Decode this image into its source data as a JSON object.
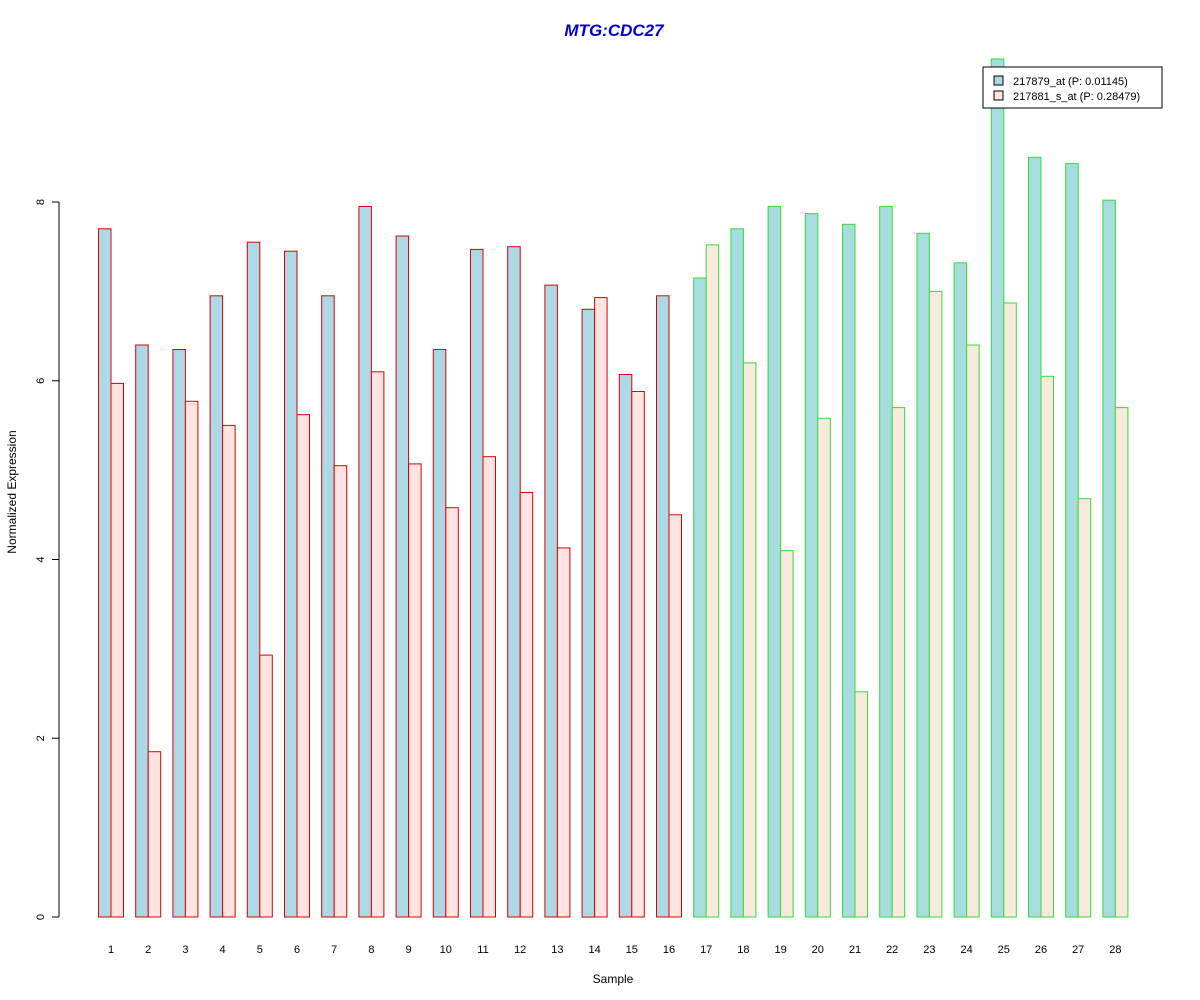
{
  "chart_data": {
    "type": "bar",
    "title": "MTG:CDC27",
    "xlabel": "Sample",
    "ylabel": "Normalized Expression",
    "ylim": [
      0,
      9.6
    ],
    "yticks": [
      0,
      2,
      4,
      6,
      8
    ],
    "grid": false,
    "legend_position": "top-right",
    "categories": [
      "1",
      "2",
      "3",
      "4",
      "5",
      "6",
      "7",
      "8",
      "9",
      "10",
      "11",
      "12",
      "13",
      "14",
      "15",
      "16",
      "17",
      "18",
      "19",
      "20",
      "21",
      "22",
      "23",
      "24",
      "25",
      "26",
      "27",
      "28"
    ],
    "group_split_after": 16,
    "series": [
      {
        "name": "217879_at (P: 0.01145)",
        "fill_group1": "#add8e6",
        "fill_group2": "#a8dde0",
        "values": [
          7.7,
          6.4,
          6.35,
          6.95,
          7.55,
          7.45,
          6.95,
          7.95,
          7.62,
          6.35,
          7.47,
          7.5,
          7.07,
          6.8,
          6.07,
          6.95,
          7.15,
          7.7,
          7.95,
          7.87,
          7.75,
          7.95,
          7.65,
          7.32,
          9.6,
          8.5,
          8.43,
          8.02
        ]
      },
      {
        "name": "217881_s_at (P: 0.28479)",
        "fill_group1": "#ffe4e1",
        "fill_group2": "#f8ebdc",
        "values": [
          5.97,
          1.85,
          5.77,
          5.5,
          2.93,
          5.62,
          5.05,
          6.1,
          5.07,
          4.58,
          5.15,
          4.75,
          4.13,
          6.93,
          5.88,
          4.5,
          7.52,
          6.2,
          4.1,
          5.58,
          2.52,
          5.7,
          7.0,
          6.4,
          6.87,
          6.05,
          4.68,
          5.7
        ]
      }
    ],
    "border_group1": "#dd0000",
    "border_group2": "#33dd33",
    "legend_swatch_fills": [
      "#add8e6",
      "#ffe4e1"
    ]
  }
}
